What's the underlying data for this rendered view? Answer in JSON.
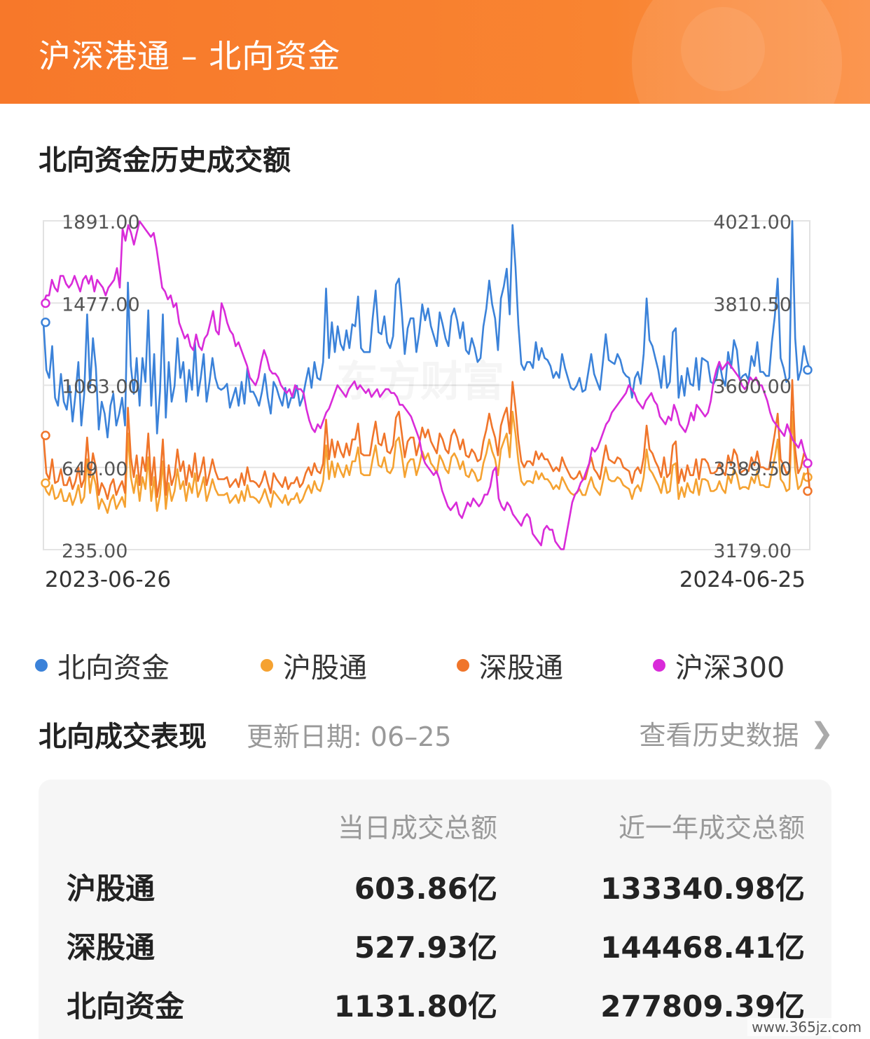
{
  "header": {
    "title": "沪深港通 – 北向资金"
  },
  "chart_section": {
    "title": "北向资金历史成交额"
  },
  "chart_data": {
    "type": "line",
    "x_start": "2023-06-26",
    "x_end": "2024-06-25",
    "left_axis": {
      "ticks": [
        "1891.00",
        "1477.00",
        "1063.00",
        "649.00",
        "235.00"
      ],
      "range": [
        235,
        1891
      ]
    },
    "right_axis": {
      "ticks": [
        "4021.00",
        "3810.50",
        "3600.00",
        "3389.50",
        "3179.00"
      ],
      "range": [
        3179,
        4021
      ]
    },
    "grid": true,
    "legend_position": "bottom",
    "series": [
      {
        "name": "北向资金",
        "axis": "left",
        "color": "#3b82d9",
        "values": [
          1380,
          1140,
          1100,
          1260,
          1000,
          960,
          1120,
          980,
          940,
          1060,
          880,
          1020,
          1180,
          860,
          1020,
          1420,
          1050,
          1300,
          1150,
          840,
          980,
          920,
          800,
          960,
          1020,
          860,
          920,
          1000,
          860,
          1580,
          1160,
          1020,
          1200,
          960,
          1200,
          1080,
          1440,
          960,
          1220,
          820,
          1030,
          1420,
          900,
          1180,
          980,
          1060,
          1300,
          1100,
          1180,
          980,
          1140,
          1040,
          1280,
          1010,
          1100,
          1220,
          980,
          1080,
          1200,
          1100,
          1050,
          1040,
          1050,
          1070,
          950,
          1000,
          1050,
          960,
          1080,
          970,
          1150,
          1030,
          1030,
          1000,
          960,
          1030,
          1120,
          1000,
          920,
          1080,
          1050,
          1000,
          960,
          1050,
          950,
          1000,
          1000,
          1060,
          960,
          1000,
          1080,
          1150,
          1050,
          1180,
          1100,
          1090,
          1180,
          1550,
          1200,
          1380,
          1230,
          1360,
          1270,
          1240,
          1340,
          1250,
          1370,
          1360,
          1510,
          1250,
          1230,
          1230,
          1230,
          1400,
          1540,
          1330,
          1320,
          1410,
          1280,
          1250,
          1310,
          1570,
          1600,
          1430,
          1220,
          1350,
          1400,
          1400,
          1230,
          1330,
          1470,
          1390,
          1450,
          1360,
          1310,
          1260,
          1430,
          1370,
          1300,
          1260,
          1410,
          1450,
          1390,
          1300,
          1380,
          1240,
          1220,
          1300,
          1250,
          1180,
          1200,
          1360,
          1450,
          1590,
          1470,
          1400,
          1240,
          1500,
          1560,
          1650,
          1420,
          1870,
          1660,
          1370,
          1170,
          1140,
          1180,
          1180,
          1150,
          1280,
          1190,
          1250,
          1200,
          1190,
          1160,
          1100,
          1130,
          1100,
          1220,
          1150,
          1100,
          1050,
          1040,
          1060,
          1100,
          1030,
          1040,
          1130,
          1220,
          1120,
          1080,
          1040,
          1180,
          1320,
          1190,
          1180,
          1170,
          1220,
          1190,
          1130,
          1110,
          1100,
          1000,
          1100,
          1130,
          1070,
          1220,
          1500,
          1290,
          1260,
          1200,
          1140,
          1050,
          1210,
          1050,
          1080,
          1330,
          1350,
          1000,
          1110,
          1010,
          1150,
          1070,
          1060,
          1200,
          1040,
          1200,
          1190,
          1180,
          1080,
          1070,
          1100,
          1180,
          1100,
          1060,
          1230,
          1150,
          1290,
          1240,
          1090,
          1110,
          1120,
          1090,
          1210,
          1160,
          1280,
          1130,
          1130,
          1110,
          1110,
          1280,
          1410,
          1600,
          1200,
          1150,
          1080,
          1100,
          1890,
          1300,
          1090,
          1140,
          1260,
          1190,
          1140
        ]
      },
      {
        "name": "沪股通",
        "axis": "left",
        "color": "#f5a231",
        "values": [
          570,
          530,
          510,
          560,
          490,
          500,
          540,
          480,
          480,
          520,
          460,
          500,
          560,
          470,
          500,
          690,
          520,
          620,
          560,
          440,
          490,
          460,
          420,
          480,
          510,
          440,
          470,
          500,
          450,
          820,
          600,
          520,
          610,
          480,
          600,
          540,
          700,
          480,
          600,
          430,
          510,
          680,
          440,
          570,
          480,
          530,
          640,
          540,
          580,
          480,
          570,
          520,
          620,
          500,
          540,
          600,
          480,
          530,
          590,
          540,
          510,
          510,
          510,
          520,
          470,
          490,
          510,
          470,
          530,
          480,
          560,
          500,
          500,
          490,
          470,
          500,
          540,
          490,
          450,
          530,
          510,
          490,
          470,
          510,
          460,
          490,
          490,
          520,
          470,
          490,
          530,
          560,
          520,
          580,
          540,
          530,
          580,
          760,
          590,
          680,
          600,
          670,
          630,
          600,
          660,
          610,
          680,
          680,
          750,
          620,
          610,
          610,
          610,
          690,
          760,
          660,
          650,
          700,
          630,
          620,
          650,
          780,
          800,
          710,
          600,
          670,
          690,
          690,
          610,
          660,
          730,
          690,
          720,
          670,
          650,
          620,
          710,
          680,
          640,
          620,
          700,
          720,
          690,
          640,
          680,
          610,
          600,
          640,
          620,
          580,
          590,
          670,
          720,
          790,
          730,
          690,
          610,
          740,
          780,
          820,
          700,
          930,
          820,
          680,
          580,
          560,
          580,
          580,
          570,
          630,
          590,
          620,
          590,
          590,
          570,
          540,
          560,
          540,
          600,
          570,
          540,
          520,
          510,
          520,
          540,
          510,
          510,
          560,
          600,
          550,
          530,
          510,
          580,
          650,
          590,
          580,
          580,
          600,
          590,
          560,
          550,
          540,
          490,
          540,
          560,
          530,
          600,
          740,
          640,
          620,
          590,
          560,
          520,
          600,
          520,
          530,
          660,
          670,
          490,
          550,
          500,
          570,
          530,
          520,
          590,
          510,
          590,
          590,
          580,
          530,
          530,
          540,
          580,
          540,
          520,
          610,
          570,
          640,
          610,
          540,
          550,
          550,
          540,
          600,
          570,
          630,
          560,
          560,
          550,
          550,
          630,
          700,
          790,
          590,
          570,
          530,
          540,
          930,
          640,
          540,
          560,
          620,
          590,
          600
        ]
      },
      {
        "name": "深股通",
        "axis": "left",
        "color": "#f0752a",
        "values": [
          810,
          620,
          590,
          690,
          570,
          580,
          640,
          560,
          560,
          600,
          540,
          580,
          650,
          550,
          590,
          800,
          600,
          720,
          650,
          510,
          570,
          540,
          490,
          560,
          590,
          510,
          550,
          580,
          520,
          950,
          700,
          600,
          710,
          560,
          700,
          630,
          820,
          560,
          700,
          500,
          590,
          790,
          510,
          660,
          560,
          610,
          740,
          630,
          680,
          560,
          660,
          600,
          720,
          580,
          630,
          700,
          560,
          620,
          690,
          630,
          590,
          590,
          590,
          600,
          550,
          570,
          590,
          550,
          620,
          560,
          650,
          580,
          580,
          570,
          550,
          580,
          630,
          570,
          520,
          620,
          590,
          570,
          550,
          600,
          540,
          570,
          570,
          600,
          550,
          570,
          620,
          650,
          610,
          670,
          630,
          620,
          670,
          890,
          690,
          790,
          700,
          780,
          730,
          700,
          770,
          710,
          790,
          790,
          870,
          720,
          710,
          710,
          710,
          800,
          880,
          770,
          760,
          820,
          730,
          720,
          760,
          900,
          930,
          820,
          700,
          780,
          800,
          800,
          710,
          770,
          850,
          800,
          840,
          780,
          750,
          720,
          820,
          790,
          740,
          720,
          810,
          840,
          800,
          740,
          790,
          710,
          700,
          740,
          720,
          680,
          690,
          780,
          840,
          920,
          850,
          800,
          710,
          860,
          910,
          950,
          820,
          1080,
          950,
          790,
          680,
          650,
          680,
          680,
          660,
          730,
          690,
          720,
          690,
          690,
          660,
          630,
          650,
          630,
          700,
          660,
          630,
          600,
          590,
          600,
          630,
          590,
          590,
          650,
          700,
          640,
          620,
          590,
          680,
          760,
          690,
          680,
          670,
          700,
          690,
          650,
          640,
          630,
          570,
          630,
          650,
          620,
          700,
          860,
          740,
          720,
          680,
          650,
          600,
          700,
          600,
          620,
          760,
          780,
          570,
          640,
          580,
          660,
          610,
          610,
          690,
          590,
          690,
          690,
          670,
          620,
          620,
          630,
          670,
          630,
          610,
          710,
          660,
          740,
          710,
          620,
          630,
          640,
          630,
          700,
          660,
          730,
          650,
          650,
          640,
          640,
          730,
          820,
          920,
          690,
          660,
          620,
          630,
          1090,
          740,
          620,
          650,
          720,
          690,
          530
        ]
      },
      {
        "name": "沪深300",
        "axis": "right",
        "color": "#d92bd9",
        "values": [
          3810,
          3830,
          3830,
          3870,
          3850,
          3840,
          3880,
          3880,
          3860,
          3850,
          3860,
          3880,
          3860,
          3840,
          3870,
          3880,
          3860,
          3880,
          3840,
          3870,
          3860,
          3850,
          3830,
          3850,
          3860,
          3870,
          3900,
          3850,
          4000,
          3970,
          4010,
          3990,
          3960,
          3990,
          4020,
          4010,
          4000,
          3990,
          3980,
          3990,
          3950,
          3900,
          3850,
          3840,
          3820,
          3830,
          3800,
          3810,
          3760,
          3740,
          3720,
          3730,
          3700,
          3690,
          3730,
          3700,
          3690,
          3720,
          3730,
          3760,
          3790,
          3740,
          3730,
          3810,
          3790,
          3760,
          3740,
          3730,
          3700,
          3710,
          3690,
          3670,
          3650,
          3620,
          3610,
          3600,
          3620,
          3660,
          3690,
          3670,
          3640,
          3630,
          3630,
          3620,
          3600,
          3590,
          3580,
          3590,
          3570,
          3600,
          3590,
          3590,
          3580,
          3540,
          3510,
          3490,
          3480,
          3500,
          3490,
          3510,
          3530,
          3540,
          3560,
          3580,
          3600,
          3590,
          3580,
          3570,
          3590,
          3600,
          3610,
          3590,
          3600,
          3590,
          3580,
          3590,
          3570,
          3580,
          3590,
          3570,
          3580,
          3590,
          3590,
          3580,
          3580,
          3570,
          3550,
          3550,
          3540,
          3530,
          3520,
          3500,
          3480,
          3460,
          3420,
          3400,
          3390,
          3380,
          3370,
          3380,
          3360,
          3330,
          3310,
          3290,
          3280,
          3290,
          3300,
          3270,
          3260,
          3280,
          3300,
          3290,
          3310,
          3300,
          3290,
          3300,
          3320,
          3320,
          3340,
          3380,
          3390,
          3310,
          3290,
          3280,
          3300,
          3290,
          3270,
          3260,
          3250,
          3240,
          3260,
          3270,
          3260,
          3220,
          3210,
          3200,
          3190,
          3230,
          3240,
          3230,
          3230,
          3200,
          3190,
          3180,
          3180,
          3220,
          3260,
          3300,
          3320,
          3330,
          3350,
          3360,
          3380,
          3400,
          3440,
          3430,
          3440,
          3460,
          3480,
          3500,
          3510,
          3530,
          3540,
          3550,
          3560,
          3570,
          3580,
          3600,
          3590,
          3580,
          3560,
          3550,
          3540,
          3560,
          3570,
          3580,
          3560,
          3550,
          3520,
          3510,
          3500,
          3520,
          3510,
          3550,
          3530,
          3500,
          3490,
          3480,
          3500,
          3530,
          3510,
          3550,
          3540,
          3530,
          3520,
          3530,
          3560,
          3610,
          3640,
          3660,
          3640,
          3650,
          3660,
          3650,
          3640,
          3630,
          3620,
          3600,
          3590,
          3600,
          3620,
          3610,
          3620,
          3600,
          3600,
          3580,
          3560,
          3530,
          3510,
          3500,
          3490,
          3480,
          3470,
          3500,
          3480,
          3460,
          3450,
          3440,
          3460,
          3430,
          3410,
          3400
        ]
      }
    ]
  },
  "legend": [
    {
      "label": "北向资金",
      "color": "#3b82d9"
    },
    {
      "label": "沪股通",
      "color": "#f5a231"
    },
    {
      "label": "深股通",
      "color": "#f0752a"
    },
    {
      "label": "沪深300",
      "color": "#d92bd9"
    }
  ],
  "performance": {
    "title": "北向成交表现",
    "update_date": "更新日期: 06–25",
    "history_link": "查看历史数据",
    "columns": [
      "当日成交总额",
      "近一年成交总额"
    ],
    "rows": [
      {
        "label": "沪股通",
        "today": "603.86亿",
        "year": "133340.98亿"
      },
      {
        "label": "深股通",
        "today": "527.93亿",
        "year": "144468.41亿"
      },
      {
        "label": "北向资金",
        "today": "1131.80亿",
        "year": "277809.39亿"
      }
    ]
  },
  "watermark": "www.365jz.com"
}
